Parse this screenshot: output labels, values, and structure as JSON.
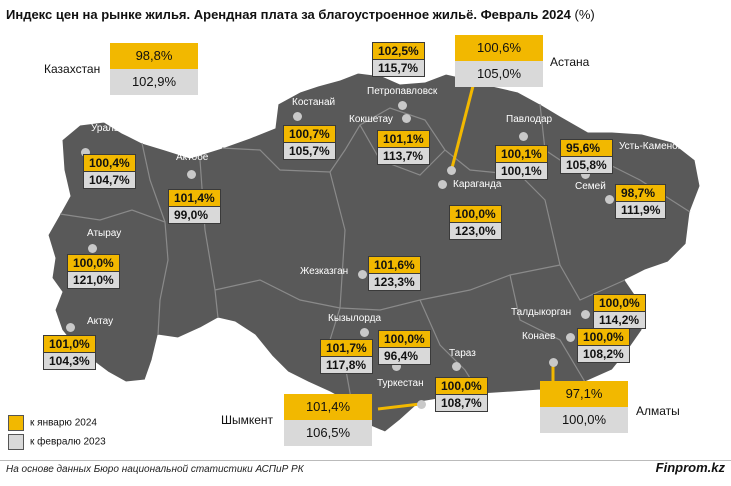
{
  "title": "Индекс цен на рынке жилья. Арендная плата за благоустроенное жильё. Февраль 2024",
  "title_unit": "(%)",
  "colors": {
    "jan": "#f2b800",
    "feb": "#d9d9d9",
    "map": "#595959"
  },
  "legend": {
    "jan": "к январю 2024",
    "feb": "к февралю 2023"
  },
  "source": "На основе данных Бюро национальной статистики АСПиР РК",
  "brand": "Finprom.kz",
  "kazakhstan": {
    "label": "Казахстан",
    "jan": "98,8%",
    "feb": "102,9%"
  },
  "astana": {
    "label": "Астана",
    "jan": "100,6%",
    "feb": "105,0%"
  },
  "almaty": {
    "label": "Алматы",
    "jan": "97,1%",
    "feb": "100,0%"
  },
  "shymkent": {
    "label": "Шымкент",
    "jan": "101,4%",
    "feb": "106,5%"
  },
  "regions": [
    {
      "city": "Уральск",
      "jan": "100,4%",
      "feb": "104,7%"
    },
    {
      "city": "Актобе",
      "jan": "101,4%",
      "feb": "99,0%"
    },
    {
      "city": "Атырау",
      "jan": "100,0%",
      "feb": "121,0%"
    },
    {
      "city": "Актау",
      "jan": "101,0%",
      "feb": "104,3%"
    },
    {
      "city": "Костанай",
      "jan": "100,7%",
      "feb": "105,7%"
    },
    {
      "city": "Петропавловск",
      "jan": "102,5%",
      "feb": "115,7%"
    },
    {
      "city": "Кокшетау",
      "jan": "101,1%",
      "feb": "113,7%"
    },
    {
      "city": "Павлодар",
      "jan": "100,1%",
      "feb": "100,1%"
    },
    {
      "city": "Семей",
      "jan": "95,6%",
      "feb": "105,8%"
    },
    {
      "city": "Усть-Каменогорск",
      "jan": "98,7%",
      "feb": "111,9%"
    },
    {
      "city": "Караганда",
      "jan": "100,0%",
      "feb": "123,0%"
    },
    {
      "city": "Жезказган",
      "jan": "101,6%",
      "feb": "123,3%"
    },
    {
      "city": "Кызылорда",
      "jan": "101,7%",
      "feb": "117,8%"
    },
    {
      "city": "Туркестан",
      "jan": "100,0%",
      "feb": "96,4%"
    },
    {
      "city": "Тараз",
      "jan": "100,0%",
      "feb": "108,7%"
    },
    {
      "city": "Талдыкорган",
      "jan": "100,0%",
      "feb": "114,2%"
    },
    {
      "city": "Конаев",
      "jan": "100,0%",
      "feb": "108,2%"
    }
  ]
}
